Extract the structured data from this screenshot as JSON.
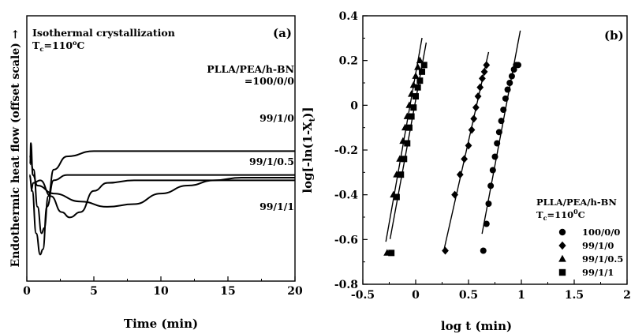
{
  "chart_data": [
    {
      "type": "line",
      "panel_label": "(a)",
      "annotation_line1": "Isothermal crystallization",
      "annotation_tc": "T",
      "annotation_tc_sub": "c",
      "annotation_tc_val": "=110",
      "annotation_tc_sup": "o",
      "annotation_tc_unit": "C",
      "xlabel": "Time (min)",
      "ylabel": "Endothermic heat flow (offset scale) →",
      "xlim": [
        0,
        20
      ],
      "xticks": [
        "0",
        "5",
        "10",
        "15",
        "20"
      ],
      "series": [
        {
          "name": "PLLA/PEA/h-BN",
          "name2": "=100/0/0",
          "points": [
            [
              0.25,
              56
            ],
            [
              0.3,
              48
            ],
            [
              0.45,
              60
            ],
            [
              0.8,
              64
            ],
            [
              2,
              67
            ],
            [
              4,
              70
            ],
            [
              6,
              72
            ],
            [
              8,
              71
            ],
            [
              10,
              67
            ],
            [
              12,
              64
            ],
            [
              14,
              62
            ],
            [
              16,
              61
            ],
            [
              20,
              61
            ]
          ]
        },
        {
          "name": "99/1/0",
          "points": [
            [
              0.3,
              66
            ],
            [
              0.5,
              63
            ],
            [
              1,
              62
            ],
            [
              1.8,
              68
            ],
            [
              2.6,
              74
            ],
            [
              3.2,
              76
            ],
            [
              4,
              74
            ],
            [
              5,
              66
            ],
            [
              6,
              63
            ],
            [
              8,
              62
            ],
            [
              20,
              62
            ]
          ]
        },
        {
          "name": "99/1/0.5",
          "points": [
            [
              0.2,
              60
            ],
            [
              0.4,
              66
            ],
            [
              0.7,
              82
            ],
            [
              1.0,
              90
            ],
            [
              1.2,
              88
            ],
            [
              1.5,
              72
            ],
            [
              2,
              62
            ],
            [
              3,
              60
            ],
            [
              5,
              60
            ],
            [
              20,
              60
            ]
          ]
        },
        {
          "name": "99/1/1",
          "points": [
            [
              0.2,
              53
            ],
            [
              0.5,
              58
            ],
            [
              0.8,
              72
            ],
            [
              1.1,
              82
            ],
            [
              1.3,
              80
            ],
            [
              1.6,
              68
            ],
            [
              2,
              58
            ],
            [
              3,
              53
            ],
            [
              5,
              51
            ],
            [
              20,
              51
            ]
          ]
        }
      ]
    },
    {
      "type": "scatter",
      "panel_label": "(b)",
      "xlabel": "log t (min)",
      "ylabel_pre": "log[-ln(1-X",
      "ylabel_sub": "t",
      "ylabel_post": ")]",
      "xlim": [
        -0.5,
        2.0
      ],
      "ylim": [
        -0.8,
        0.4
      ],
      "xticks": [
        {
          "v": -0.5,
          "label": "-0.5"
        },
        {
          "v": 0,
          "label": "0"
        },
        {
          "v": 0.5,
          "label": "0.5"
        },
        {
          "v": 1.0,
          "label": "1"
        },
        {
          "v": 1.5,
          "label": "1.5"
        },
        {
          "v": 2.0,
          "label": "2"
        }
      ],
      "yticks": [
        {
          "v": 0.4,
          "label": "0.4"
        },
        {
          "v": 0.2,
          "label": "0.2"
        },
        {
          "v": 0,
          "label": "0"
        },
        {
          "v": -0.2,
          "label": "-0.2"
        },
        {
          "v": -0.4,
          "label": "-0.4"
        },
        {
          "v": -0.6,
          "label": "-0.6"
        },
        {
          "v": -0.8,
          "label": "-0.8"
        }
      ],
      "legend_title": "PLLA/PEA/h-BN",
      "legend_tc": "T",
      "legend_tc_sub": "c",
      "legend_tc_val": "=110",
      "legend_tc_sup": "0",
      "legend_tc_unit": "C",
      "legend_position": "bottom-right",
      "series": [
        {
          "name": "100/0/0",
          "marker": "circle",
          "x": [
            0.64,
            0.67,
            0.69,
            0.71,
            0.73,
            0.75,
            0.77,
            0.79,
            0.81,
            0.83,
            0.85,
            0.87,
            0.89,
            0.91,
            0.93,
            0.95,
            0.97
          ],
          "y": [
            -0.65,
            -0.53,
            -0.44,
            -0.36,
            -0.29,
            -0.23,
            -0.17,
            -0.12,
            -0.07,
            -0.02,
            0.03,
            0.07,
            0.1,
            0.13,
            0.16,
            0.18,
            0.18
          ]
        },
        {
          "name": "99/1/0",
          "marker": "diamond",
          "x": [
            0.28,
            0.37,
            0.42,
            0.46,
            0.5,
            0.53,
            0.55,
            0.57,
            0.59,
            0.61,
            0.63,
            0.65,
            0.67
          ],
          "y": [
            -0.65,
            -0.4,
            -0.31,
            -0.24,
            -0.18,
            -0.11,
            -0.06,
            -0.01,
            0.04,
            0.08,
            0.12,
            0.15,
            0.18
          ]
        },
        {
          "name": "99/1/0.5",
          "marker": "triangle",
          "x": [
            -0.27,
            -0.21,
            -0.18,
            -0.15,
            -0.12,
            -0.1,
            -0.08,
            -0.06,
            -0.04,
            -0.02,
            0.0,
            0.02,
            0.04
          ],
          "y": [
            -0.66,
            -0.4,
            -0.31,
            -0.24,
            -0.16,
            -0.1,
            -0.05,
            0.0,
            0.05,
            0.09,
            0.13,
            0.17,
            0.2
          ]
        },
        {
          "name": "99/1/1",
          "marker": "square",
          "x": [
            -0.23,
            -0.18,
            -0.14,
            -0.11,
            -0.08,
            -0.06,
            -0.04,
            -0.02,
            0.0,
            0.02,
            0.04,
            0.06,
            0.08
          ],
          "y": [
            -0.66,
            -0.41,
            -0.31,
            -0.24,
            -0.17,
            -0.1,
            -0.05,
            -0.01,
            0.04,
            0.08,
            0.11,
            0.15,
            0.18
          ]
        }
      ]
    }
  ]
}
